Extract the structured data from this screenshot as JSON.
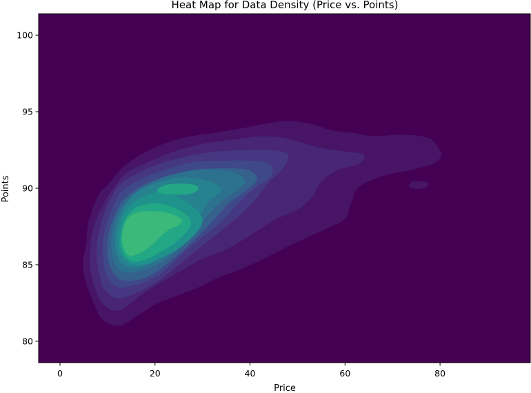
{
  "chart_data": {
    "type": "heatmap",
    "title": "Heat Map for Data Density (Price vs. Points)",
    "xlabel": "Price",
    "ylabel": "Points",
    "xlim": [
      -4.5,
      99
    ],
    "ylim": [
      78.6,
      101.4
    ],
    "xticks": [
      0,
      20,
      40,
      60,
      80
    ],
    "yticks": [
      80,
      85,
      90,
      95,
      100
    ],
    "grid": false,
    "colormap": "viridis",
    "colors": {
      "background": "#440154",
      "levels": [
        "#471466",
        "#482575",
        "#453781",
        "#3f4889",
        "#35618d",
        "#2c728e",
        "#26828e",
        "#1f928c",
        "#22a884",
        "#3ab97a",
        "#a5db36"
      ]
    },
    "density_levels": [
      {
        "level": 1,
        "points": [
          [
            12.5,
            81.0
          ],
          [
            9.0,
            81.4
          ],
          [
            7.2,
            82.4
          ],
          [
            5.5,
            83.8
          ],
          [
            4.8,
            85.0
          ],
          [
            5.5,
            86.3
          ],
          [
            6.0,
            87.8
          ],
          [
            8.0,
            89.5
          ],
          [
            10.0,
            90.2
          ],
          [
            13.0,
            91.3
          ],
          [
            16.5,
            92.1
          ],
          [
            21.0,
            92.8
          ],
          [
            26.0,
            93.3
          ],
          [
            32.0,
            93.6
          ],
          [
            38.0,
            93.9
          ],
          [
            43.0,
            94.2
          ],
          [
            48.0,
            94.4
          ],
          [
            53.0,
            94.2
          ],
          [
            57.0,
            93.8
          ],
          [
            62.0,
            93.6
          ],
          [
            66.0,
            93.4
          ],
          [
            72.0,
            93.5
          ],
          [
            77.5,
            93.3
          ],
          [
            79.5,
            92.7
          ],
          [
            80.2,
            92.1
          ],
          [
            78.5,
            91.6
          ],
          [
            74.0,
            91.2
          ],
          [
            68.0,
            90.8
          ],
          [
            63.0,
            90.1
          ],
          [
            61.5,
            89.2
          ],
          [
            60.0,
            88.0
          ],
          [
            57.0,
            87.5
          ],
          [
            53.0,
            86.9
          ],
          [
            48.0,
            86.2
          ],
          [
            43.0,
            85.4
          ],
          [
            38.0,
            84.7
          ],
          [
            33.0,
            84.1
          ],
          [
            29.0,
            83.5
          ],
          [
            24.0,
            82.9
          ],
          [
            20.0,
            82.4
          ],
          [
            16.0,
            81.6
          ]
        ]
      },
      {
        "level": 2,
        "points": [
          [
            12.5,
            82.0
          ],
          [
            9.2,
            82.4
          ],
          [
            7.6,
            83.3
          ],
          [
            6.4,
            84.6
          ],
          [
            6.4,
            86.2
          ],
          [
            7.2,
            87.6
          ],
          [
            9.2,
            89.0
          ],
          [
            11.5,
            90.1
          ],
          [
            14.0,
            91.0
          ],
          [
            18.5,
            91.7
          ],
          [
            24.0,
            92.4
          ],
          [
            30.0,
            92.9
          ],
          [
            37.0,
            93.2
          ],
          [
            43.0,
            93.4
          ],
          [
            48.5,
            93.2
          ],
          [
            54.0,
            92.7
          ],
          [
            60.0,
            92.4
          ],
          [
            64.0,
            92.2
          ],
          [
            63.0,
            91.6
          ],
          [
            58.5,
            91.2
          ],
          [
            55.0,
            90.4
          ],
          [
            53.0,
            89.4
          ],
          [
            50.0,
            88.6
          ],
          [
            45.0,
            87.9
          ],
          [
            40.0,
            86.9
          ],
          [
            35.0,
            86.0
          ],
          [
            30.0,
            85.4
          ],
          [
            26.0,
            84.7
          ],
          [
            21.0,
            83.8
          ],
          [
            17.0,
            83.0
          ]
        ]
      },
      {
        "level": 3,
        "points": [
          [
            12.5,
            82.8
          ],
          [
            9.6,
            83.3
          ],
          [
            8.4,
            84.2
          ],
          [
            7.7,
            85.6
          ],
          [
            8.0,
            86.8
          ],
          [
            9.0,
            88.1
          ],
          [
            10.6,
            89.3
          ],
          [
            12.8,
            90.3
          ],
          [
            16.5,
            91.0
          ],
          [
            21.0,
            91.6
          ],
          [
            27.0,
            92.1
          ],
          [
            33.0,
            92.4
          ],
          [
            39.0,
            92.5
          ],
          [
            44.5,
            92.5
          ],
          [
            48.0,
            92.2
          ],
          [
            47.0,
            91.3
          ],
          [
            44.0,
            90.4
          ],
          [
            41.0,
            89.2
          ],
          [
            37.0,
            88.0
          ],
          [
            33.0,
            87.0
          ],
          [
            29.0,
            86.0
          ],
          [
            25.0,
            85.0
          ],
          [
            21.0,
            84.0
          ],
          [
            17.0,
            83.3
          ]
        ]
      },
      {
        "level": 4,
        "points": [
          [
            12.8,
            83.5
          ],
          [
            10.2,
            84.1
          ],
          [
            9.2,
            85.1
          ],
          [
            9.0,
            86.5
          ],
          [
            9.8,
            87.7
          ],
          [
            11.2,
            88.8
          ],
          [
            13.0,
            89.8
          ],
          [
            17.0,
            90.6
          ],
          [
            22.0,
            91.2
          ],
          [
            28.0,
            91.7
          ],
          [
            34.0,
            91.8
          ],
          [
            40.0,
            91.8
          ],
          [
            44.0,
            91.6
          ],
          [
            44.5,
            90.8
          ],
          [
            41.0,
            90.0
          ],
          [
            37.5,
            89.0
          ],
          [
            34.0,
            87.8
          ],
          [
            30.0,
            86.8
          ],
          [
            26.0,
            85.8
          ],
          [
            22.0,
            84.6
          ],
          [
            18.0,
            83.9
          ]
        ]
      },
      {
        "level": 5,
        "points": [
          [
            13.0,
            84.0
          ],
          [
            10.8,
            84.7
          ],
          [
            10.0,
            85.7
          ],
          [
            10.2,
            87.0
          ],
          [
            11.5,
            88.2
          ],
          [
            13.5,
            89.3
          ],
          [
            17.5,
            90.2
          ],
          [
            22.5,
            90.8
          ],
          [
            28.0,
            91.2
          ],
          [
            34.0,
            91.3
          ],
          [
            39.5,
            91.2
          ],
          [
            41.5,
            90.6
          ],
          [
            39.0,
            89.8
          ],
          [
            35.5,
            89.0
          ],
          [
            32.0,
            87.8
          ],
          [
            28.5,
            86.7
          ],
          [
            25.0,
            85.7
          ],
          [
            21.5,
            84.8
          ],
          [
            17.5,
            84.1
          ]
        ]
      },
      {
        "level": 6,
        "points": [
          [
            13.5,
            84.5
          ],
          [
            11.5,
            85.1
          ],
          [
            10.8,
            86.2
          ],
          [
            11.2,
            87.4
          ],
          [
            12.5,
            88.5
          ],
          [
            15.0,
            89.5
          ],
          [
            19.0,
            90.3
          ],
          [
            24.0,
            90.9
          ],
          [
            30.0,
            91.2
          ],
          [
            36.0,
            91.1
          ],
          [
            39.0,
            90.5
          ],
          [
            37.0,
            89.8
          ],
          [
            33.5,
            89.0
          ],
          [
            30.5,
            88.0
          ],
          [
            27.5,
            86.9
          ],
          [
            24.5,
            85.9
          ],
          [
            21.0,
            85.1
          ],
          [
            17.0,
            84.6
          ]
        ]
      },
      {
        "level": 7,
        "points": [
          [
            13.8,
            84.9
          ],
          [
            12.0,
            85.6
          ],
          [
            11.6,
            86.6
          ],
          [
            12.2,
            87.8
          ],
          [
            13.8,
            88.9
          ],
          [
            16.5,
            89.8
          ],
          [
            21.0,
            90.4
          ],
          [
            26.0,
            90.7
          ],
          [
            31.0,
            90.5
          ],
          [
            34.0,
            89.9
          ],
          [
            31.5,
            89.2
          ],
          [
            29.5,
            88.2
          ],
          [
            27.5,
            87.1
          ],
          [
            24.5,
            86.1
          ],
          [
            21.0,
            85.4
          ],
          [
            17.5,
            84.9
          ]
        ]
      },
      {
        "level": 8,
        "points": [
          [
            14.0,
            85.2
          ],
          [
            12.5,
            85.9
          ],
          [
            12.3,
            86.9
          ],
          [
            13.0,
            88.0
          ],
          [
            14.8,
            88.9
          ],
          [
            18.0,
            89.5
          ],
          [
            22.0,
            89.8
          ],
          [
            25.0,
            89.4
          ],
          [
            28.0,
            88.8
          ],
          [
            30.0,
            88.0
          ],
          [
            29.0,
            87.2
          ],
          [
            26.0,
            86.3
          ],
          [
            23.0,
            85.7
          ],
          [
            19.5,
            85.2
          ],
          [
            16.5,
            85.0
          ]
        ]
      },
      {
        "level": 9,
        "points": [
          [
            14.2,
            85.4
          ],
          [
            12.9,
            86.0
          ],
          [
            12.8,
            87.0
          ],
          [
            13.8,
            88.0
          ],
          [
            15.8,
            88.7
          ],
          [
            19.0,
            89.0
          ],
          [
            22.5,
            88.9
          ],
          [
            25.5,
            88.5
          ],
          [
            27.5,
            87.9
          ],
          [
            27.0,
            87.3
          ],
          [
            24.5,
            86.5
          ],
          [
            21.5,
            85.9
          ],
          [
            18.5,
            85.4
          ],
          [
            16.0,
            85.2
          ]
        ]
      },
      {
        "level": 9,
        "points": [
          [
            20.5,
            89.9
          ],
          [
            22.0,
            90.2
          ],
          [
            25.5,
            90.3
          ],
          [
            28.5,
            90.2
          ],
          [
            29.0,
            89.9
          ],
          [
            27.0,
            89.6
          ],
          [
            23.0,
            89.6
          ],
          [
            21.0,
            89.7
          ]
        ]
      },
      {
        "level": 10,
        "points": [
          [
            14.5,
            85.6
          ],
          [
            13.2,
            86.3
          ],
          [
            13.2,
            87.2
          ],
          [
            14.2,
            88.0
          ],
          [
            16.0,
            88.4
          ],
          [
            19.0,
            88.5
          ],
          [
            22.5,
            88.4
          ],
          [
            25.5,
            88.0
          ],
          [
            25.0,
            87.6
          ],
          [
            23.0,
            87.3
          ],
          [
            21.0,
            86.8
          ],
          [
            19.0,
            86.2
          ],
          [
            17.0,
            85.8
          ]
        ]
      },
      {
        "level": 1,
        "points": [
          [
            73.5,
            90.2
          ],
          [
            74.3,
            90.45
          ],
          [
            76.0,
            90.45
          ],
          [
            77.5,
            90.35
          ],
          [
            77.0,
            90.05
          ],
          [
            75.5,
            89.95
          ],
          [
            74.0,
            90.0
          ]
        ]
      }
    ]
  }
}
